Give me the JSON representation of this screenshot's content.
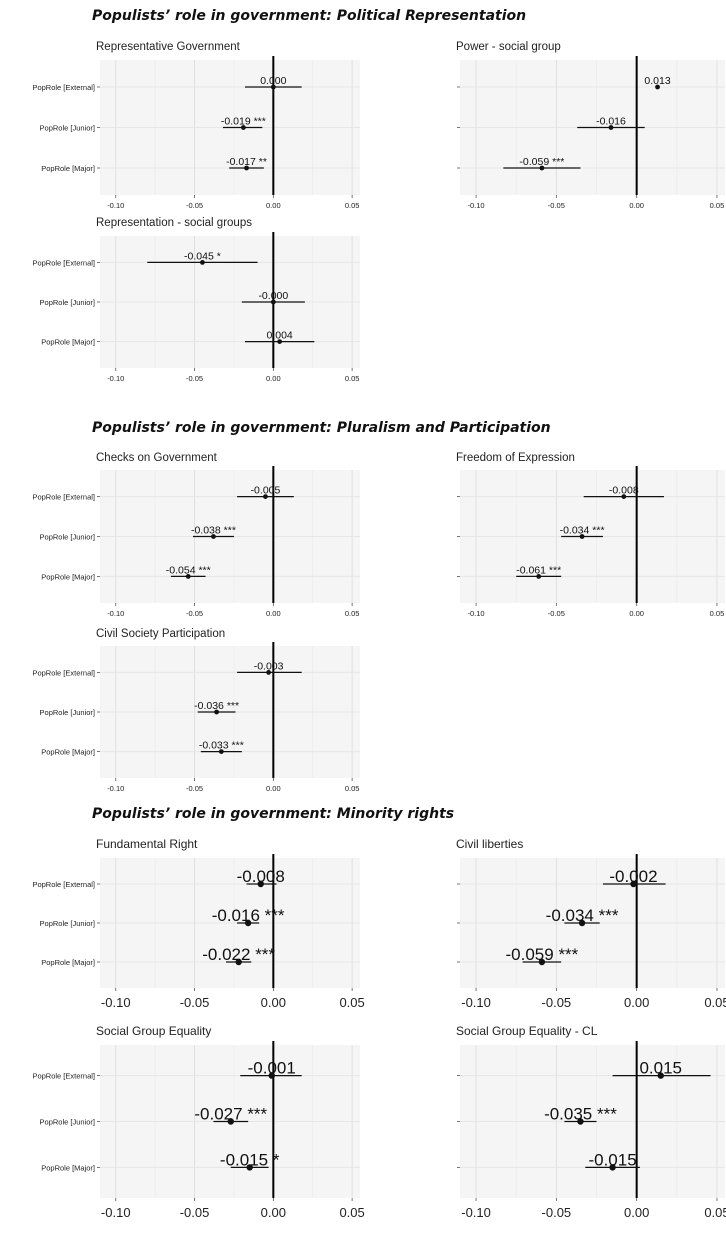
{
  "sections": [
    {
      "title": "Populists’ role in government:  Political Representation",
      "panels": [
        {
          "title": "Representative Government",
          "labels": [
            "0.000",
            "-0.019 ***",
            "-0.017 **"
          ]
        },
        {
          "title": "Power - social group",
          "labels": [
            "0.013",
            "-0.016",
            "-0.059 ***"
          ]
        },
        {
          "title": "Representation - social groups",
          "labels": [
            "-0.045 *",
            "-0.000",
            "0.004"
          ]
        }
      ]
    },
    {
      "title": "Populists’ role in government:  Pluralism and Participation",
      "panels": [
        {
          "title": "Checks on Government",
          "labels": [
            "-0.005",
            "-0.038 ***",
            "-0.054 ***"
          ]
        },
        {
          "title": "Freedom of Expression",
          "labels": [
            "-0.008",
            "-0.034 ***",
            "-0.061 ***"
          ]
        },
        {
          "title": "Civil Society Participation",
          "labels": [
            "-0.003",
            "-0.036 ***",
            "-0.033 ***"
          ]
        }
      ]
    },
    {
      "title": "Populists’ role  in government:  Minority rights",
      "panels": [
        {
          "title": "Fundamental Right",
          "labels": [
            "-0.008",
            "-0.016 ***",
            "-0.022 ***"
          ]
        },
        {
          "title": "Civil liberties",
          "labels": [
            "-0.002",
            "-0.034 ***",
            "-0.059 ***"
          ]
        },
        {
          "title": "Social Group Equality",
          "labels": [
            "-0.001",
            "-0.027 ***",
            "-0.015 *"
          ]
        },
        {
          "title": "Social Group Equality - CL",
          "labels": [
            "0.015",
            "-0.035 ***",
            "-0.015"
          ]
        }
      ]
    }
  ],
  "chart_data": [
    {
      "type": "scatter",
      "title": "Representative Government",
      "categories": [
        "PopRole [External]",
        "PopRole [Junior]",
        "PopRole [Major]"
      ],
      "values": [
        0.0,
        -0.019,
        -0.017
      ],
      "ci_low": [
        -0.018,
        -0.032,
        -0.028
      ],
      "ci_high": [
        0.018,
        -0.007,
        -0.006
      ],
      "xlim": [
        -0.11,
        0.055
      ],
      "xticks": [
        "-0.10",
        "-0.05",
        "0.00",
        "0.05"
      ],
      "reference_line": 0,
      "grid": true
    },
    {
      "type": "scatter",
      "title": "Power - social group",
      "categories": [
        "PopRole [External]",
        "PopRole [Junior]",
        "PopRole [Major]"
      ],
      "values": [
        0.013,
        -0.016,
        -0.059
      ],
      "ci_low": [
        0.013,
        -0.037,
        -0.083
      ],
      "ci_high": [
        0.013,
        0.005,
        -0.035
      ],
      "xlim": [
        -0.11,
        0.055
      ],
      "xticks": [
        "-0.10",
        "-0.05",
        "0.00",
        "0.05"
      ],
      "reference_line": 0,
      "grid": true
    },
    {
      "type": "scatter",
      "title": "Representation - social groups",
      "categories": [
        "PopRole [External]",
        "PopRole [Junior]",
        "PopRole [Major]"
      ],
      "values": [
        -0.045,
        -0.0,
        0.004
      ],
      "ci_low": [
        -0.08,
        -0.02,
        -0.018
      ],
      "ci_high": [
        -0.01,
        0.02,
        0.026
      ],
      "xlim": [
        -0.11,
        0.055
      ],
      "xticks": [
        "-0.10",
        "-0.05",
        "0.00",
        "0.05"
      ],
      "reference_line": 0,
      "grid": true
    },
    {
      "type": "scatter",
      "title": "Checks on Government",
      "categories": [
        "PopRole [External]",
        "PopRole [Junior]",
        "PopRole [Major]"
      ],
      "values": [
        -0.005,
        -0.038,
        -0.054
      ],
      "ci_low": [
        -0.023,
        -0.051,
        -0.065
      ],
      "ci_high": [
        0.013,
        -0.025,
        -0.043
      ],
      "xlim": [
        -0.11,
        0.055
      ],
      "xticks": [
        "-0.10",
        "-0.05",
        "0.00",
        "0.05"
      ],
      "reference_line": 0,
      "grid": true
    },
    {
      "type": "scatter",
      "title": "Freedom of Expression",
      "categories": [
        "PopRole [External]",
        "PopRole [Junior]",
        "PopRole [Major]"
      ],
      "values": [
        -0.008,
        -0.034,
        -0.061
      ],
      "ci_low": [
        -0.033,
        -0.047,
        -0.075
      ],
      "ci_high": [
        0.017,
        -0.021,
        -0.047
      ],
      "xlim": [
        -0.11,
        0.055
      ],
      "xticks": [
        "-0.10",
        "-0.05",
        "0.00",
        "0.05"
      ],
      "reference_line": 0,
      "grid": true
    },
    {
      "type": "scatter",
      "title": "Civil Society Participation",
      "categories": [
        "PopRole [External]",
        "PopRole [Junior]",
        "PopRole [Major]"
      ],
      "values": [
        -0.003,
        -0.036,
        -0.033
      ],
      "ci_low": [
        -0.023,
        -0.048,
        -0.046
      ],
      "ci_high": [
        0.018,
        -0.024,
        -0.02
      ],
      "xlim": [
        -0.11,
        0.055
      ],
      "xticks": [
        "-0.10",
        "-0.05",
        "0.00",
        "0.05"
      ],
      "reference_line": 0,
      "grid": true
    },
    {
      "type": "scatter",
      "title": "Fundamental Right",
      "categories": [
        "PopRole [External]",
        "PopRole [Junior]",
        "PopRole [Major]"
      ],
      "values": [
        -0.008,
        -0.016,
        -0.022
      ],
      "ci_low": [
        -0.017,
        -0.023,
        -0.03
      ],
      "ci_high": [
        0.002,
        -0.009,
        -0.014
      ],
      "xlim": [
        -0.11,
        0.055
      ],
      "xticks": [
        "-0.10",
        "-0.05",
        "0.00",
        "0.05"
      ],
      "reference_line": 0,
      "grid": true
    },
    {
      "type": "scatter",
      "title": "Civil liberties",
      "categories": [
        "PopRole [External]",
        "PopRole [Junior]",
        "PopRole [Major]"
      ],
      "values": [
        -0.002,
        -0.034,
        -0.059
      ],
      "ci_low": [
        -0.021,
        -0.045,
        -0.071
      ],
      "ci_high": [
        0.018,
        -0.023,
        -0.047
      ],
      "xlim": [
        -0.11,
        0.055
      ],
      "xticks": [
        "-0.10",
        "-0.05",
        "0.00",
        "0.05"
      ],
      "reference_line": 0,
      "grid": true
    },
    {
      "type": "scatter",
      "title": "Social Group Equality",
      "categories": [
        "PopRole [External]",
        "PopRole [Junior]",
        "PopRole [Major]"
      ],
      "values": [
        -0.001,
        -0.027,
        -0.015
      ],
      "ci_low": [
        -0.021,
        -0.038,
        -0.027
      ],
      "ci_high": [
        0.018,
        -0.016,
        -0.003
      ],
      "xlim": [
        -0.11,
        0.055
      ],
      "xticks": [
        "-0.10",
        "-0.05",
        "0.00",
        "0.05"
      ],
      "reference_line": 0,
      "grid": true
    },
    {
      "type": "scatter",
      "title": "Social Group Equality - CL",
      "categories": [
        "PopRole [External]",
        "PopRole [Junior]",
        "PopRole [Major]"
      ],
      "values": [
        0.015,
        -0.035,
        -0.015
      ],
      "ci_low": [
        -0.015,
        -0.045,
        -0.032
      ],
      "ci_high": [
        0.046,
        -0.025,
        0.002
      ],
      "xlim": [
        -0.11,
        0.055
      ],
      "xticks": [
        "-0.10",
        "-0.05",
        "0.00",
        "0.05"
      ],
      "reference_line": 0,
      "grid": true
    }
  ]
}
